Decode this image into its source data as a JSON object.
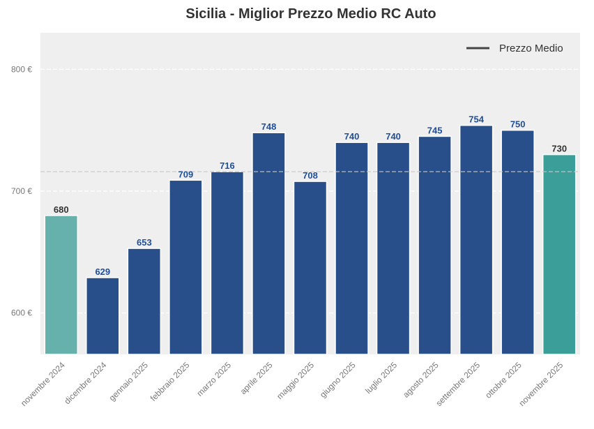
{
  "chart_data": {
    "type": "bar",
    "title": "Sicilia - Miglior Prezzo Medio RC Auto",
    "xlabel": "",
    "ylabel": "",
    "ylim": [
      566,
      830
    ],
    "yticks": [
      600,
      700,
      800
    ],
    "ytick_labels": [
      "600 €",
      "700 €",
      "800 €"
    ],
    "grid": true,
    "categories": [
      "novembre 2024",
      "dicembre 2024",
      "gennaio 2025",
      "febbraio 2025",
      "marzo 2025",
      "aprile 2025",
      "maggio 2025",
      "giugno 2025",
      "luglio 2025",
      "agosto 2025",
      "settembre 2025",
      "ottobre 2025",
      "novembre 2025"
    ],
    "values": [
      680,
      629,
      653,
      709,
      716,
      748,
      708,
      740,
      740,
      745,
      754,
      750,
      730
    ],
    "bar_colors": [
      "#66b1ac",
      "#284f8a",
      "#284f8a",
      "#284f8a",
      "#284f8a",
      "#284f8a",
      "#284f8a",
      "#284f8a",
      "#284f8a",
      "#284f8a",
      "#284f8a",
      "#284f8a",
      "#3b9e98"
    ],
    "label_colors": [
      "#333333",
      "#1f4e9a",
      "#1f4e9a",
      "#1f4e9a",
      "#1f4e9a",
      "#1f4e9a",
      "#1f4e9a",
      "#1f4e9a",
      "#1f4e9a",
      "#1f4e9a",
      "#1f4e9a",
      "#1f4e9a",
      "#333333"
    ],
    "mean_line": {
      "label": "Prezzo Medio",
      "value": 716
    },
    "legend_position": "top-right"
  }
}
